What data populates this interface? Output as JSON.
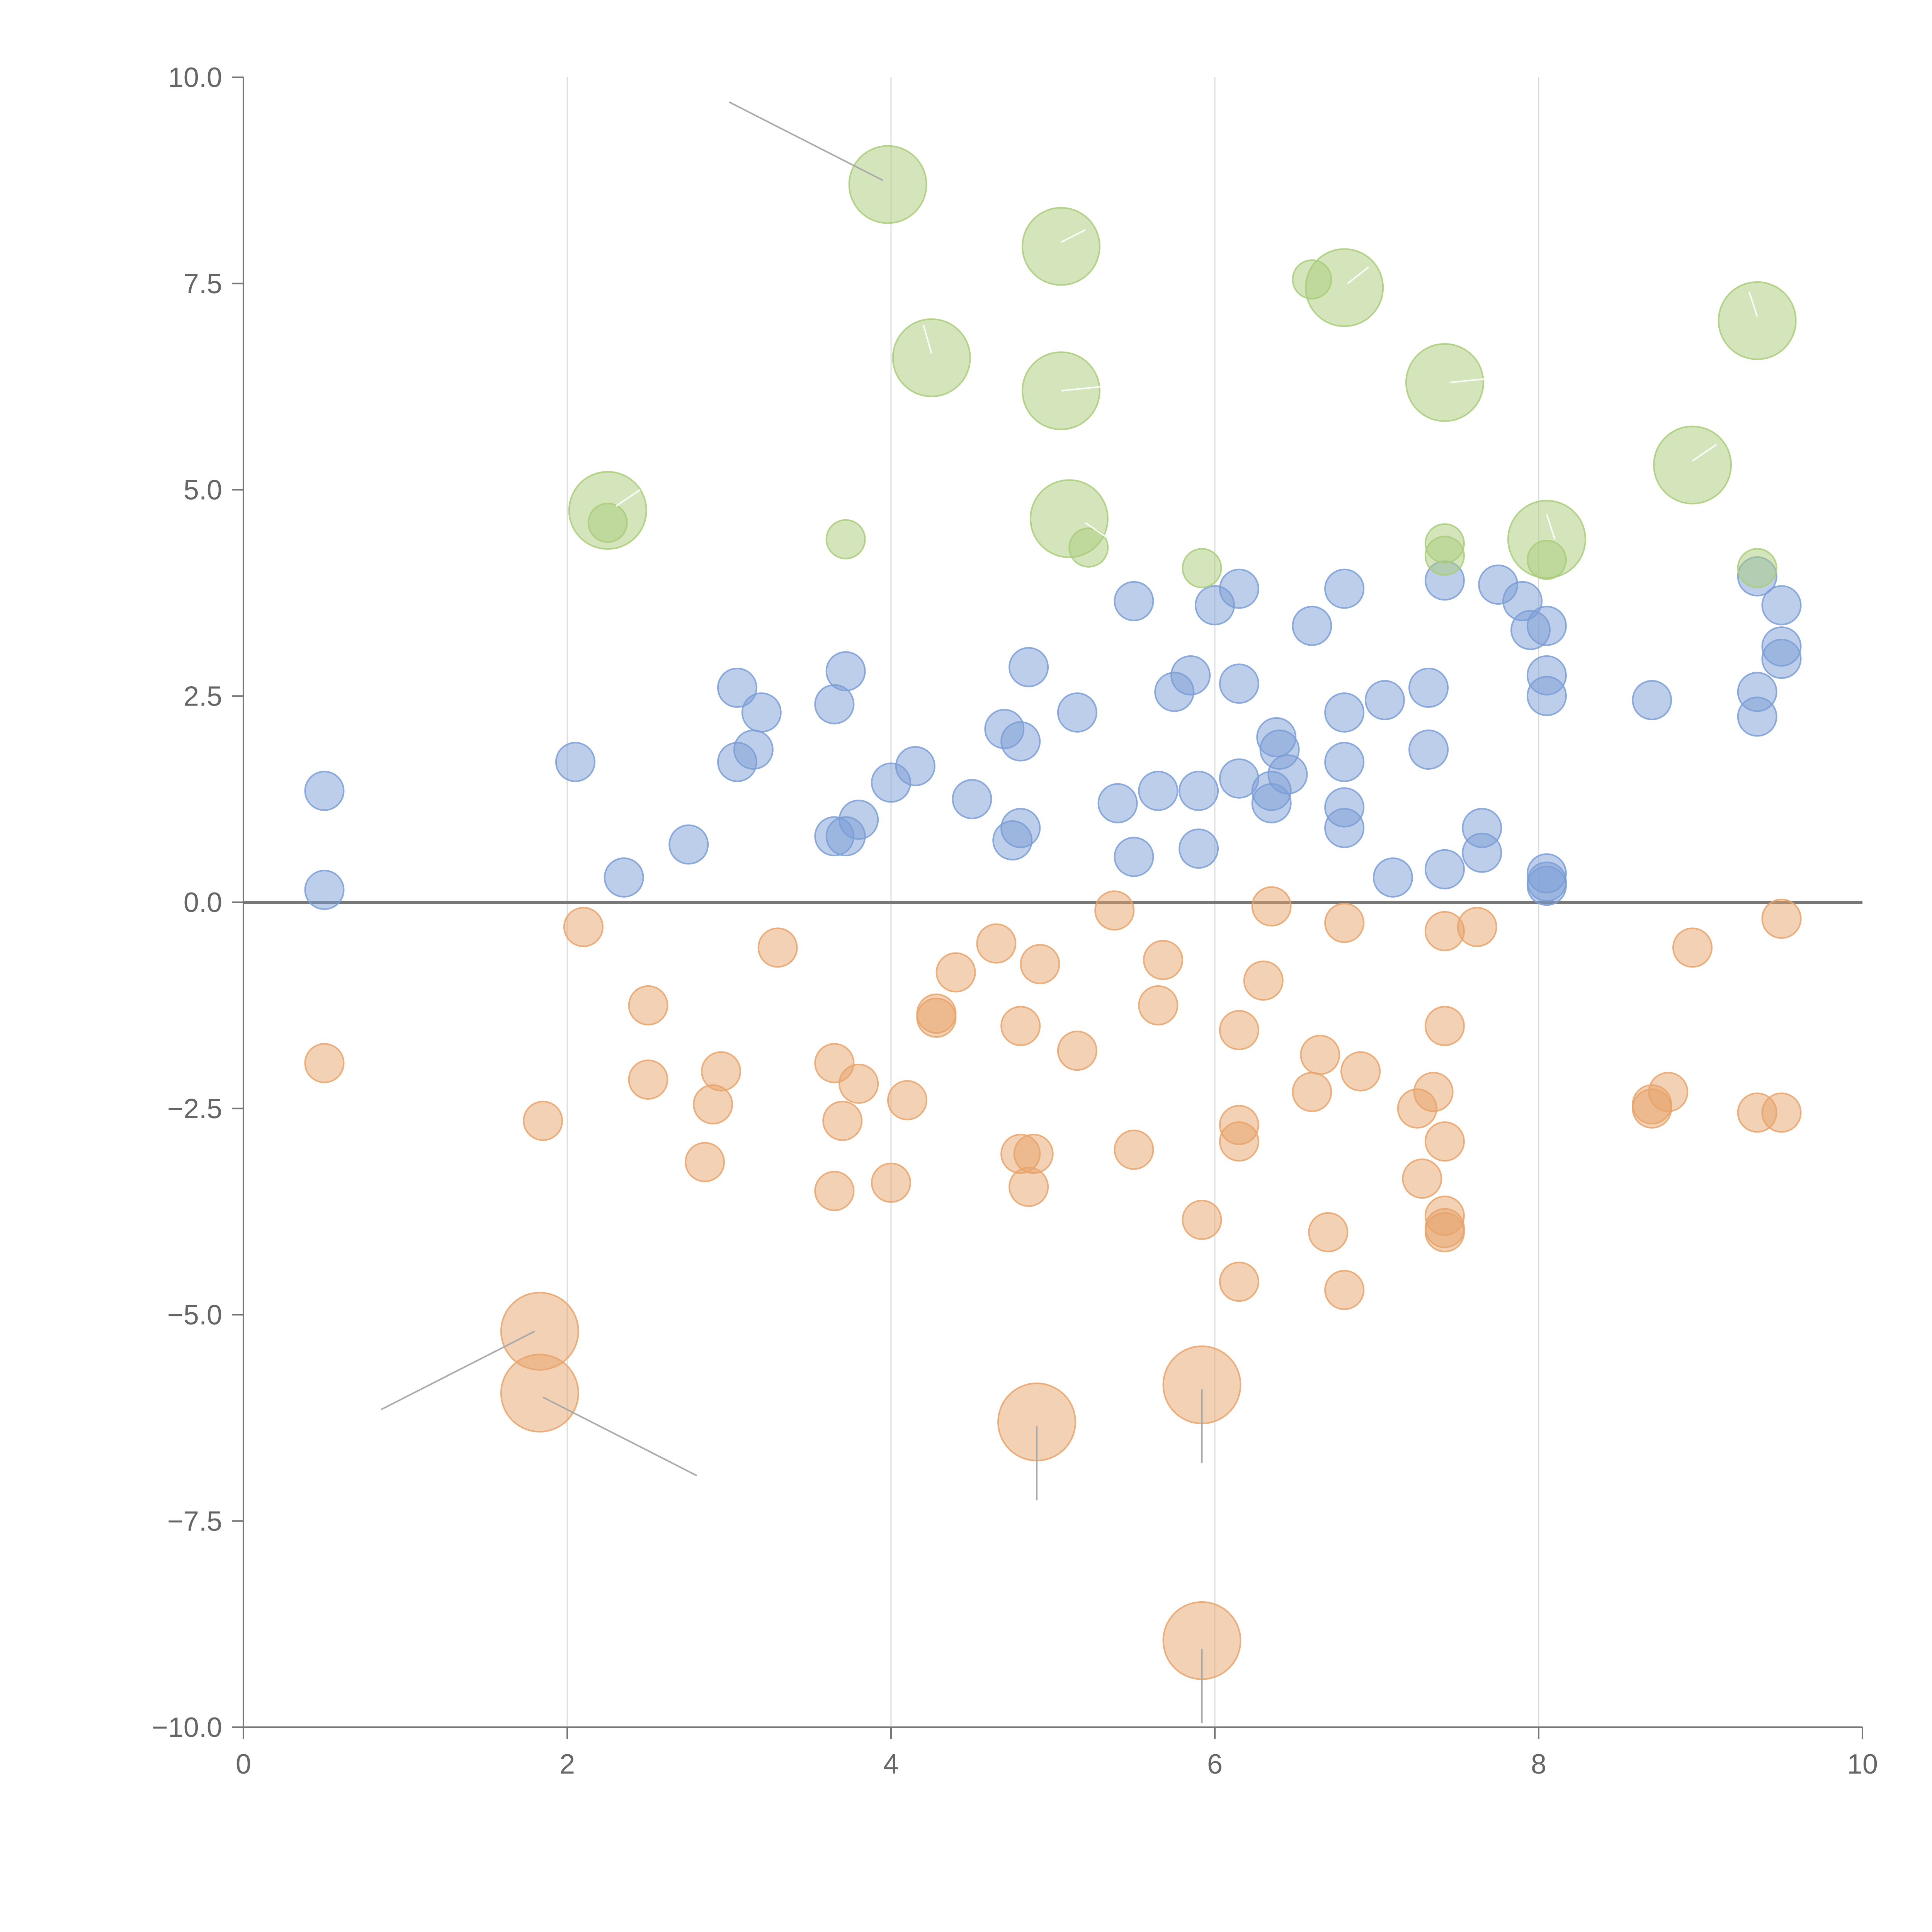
{
  "chart_data": {
    "type": "scatter",
    "title": "",
    "xlabel": "",
    "ylabel": "",
    "xlim": [
      0,
      10
    ],
    "ylim": [
      -10,
      10
    ],
    "x_ticks": [
      "0",
      "2",
      "4",
      "6",
      "8",
      "10"
    ],
    "y_ticks": [
      "10.0",
      "7.5",
      "5.0",
      "2.5",
      "0.0",
      "−2.5",
      "−5.0",
      "−7.5",
      "−10.0"
    ],
    "grid": "vertical-only",
    "zero_line": true,
    "colors": {
      "blue": "#7b9ed6",
      "orange": "#e8a36b",
      "green": "#a9cc7a"
    },
    "series": [
      {
        "color": "blue",
        "size": "small",
        "points": [
          [
            0.5,
            1.35
          ],
          [
            0.5,
            0.15
          ],
          [
            2.05,
            1.7
          ],
          [
            2.35,
            0.3
          ],
          [
            2.75,
            0.7
          ],
          [
            3.05,
            2.6
          ],
          [
            3.05,
            1.7
          ],
          [
            3.15,
            1.85
          ],
          [
            3.2,
            2.3
          ],
          [
            3.65,
            2.4
          ],
          [
            3.65,
            0.8
          ],
          [
            3.72,
            2.8
          ],
          [
            3.72,
            0.8
          ],
          [
            3.8,
            1.0
          ],
          [
            4.0,
            1.45
          ],
          [
            4.15,
            1.65
          ],
          [
            4.5,
            1.25
          ],
          [
            4.7,
            2.1
          ],
          [
            4.75,
            0.75
          ],
          [
            4.8,
            1.95
          ],
          [
            4.8,
            0.9
          ],
          [
            4.85,
            2.85
          ],
          [
            5.15,
            2.3
          ],
          [
            5.4,
            1.2
          ],
          [
            5.5,
            0.55
          ],
          [
            5.5,
            3.65
          ],
          [
            5.65,
            1.35
          ],
          [
            5.75,
            2.55
          ],
          [
            5.85,
            2.75
          ],
          [
            5.9,
            1.35
          ],
          [
            5.9,
            0.65
          ],
          [
            6.0,
            3.6
          ],
          [
            6.15,
            3.8
          ],
          [
            6.15,
            2.65
          ],
          [
            6.15,
            1.5
          ],
          [
            6.35,
            1.35
          ],
          [
            6.35,
            1.2
          ],
          [
            6.38,
            2.0
          ],
          [
            6.4,
            1.85
          ],
          [
            6.45,
            1.55
          ],
          [
            6.6,
            3.35
          ],
          [
            6.8,
            3.8
          ],
          [
            6.8,
            2.3
          ],
          [
            6.8,
            1.7
          ],
          [
            6.8,
            1.15
          ],
          [
            6.8,
            0.9
          ],
          [
            7.05,
            2.45
          ],
          [
            7.1,
            0.3
          ],
          [
            7.32,
            2.6
          ],
          [
            7.32,
            1.85
          ],
          [
            7.42,
            3.9
          ],
          [
            7.42,
            0.4
          ],
          [
            7.65,
            0.9
          ],
          [
            7.65,
            0.6
          ],
          [
            7.75,
            3.85
          ],
          [
            7.9,
            3.65
          ],
          [
            7.95,
            3.3
          ],
          [
            8.05,
            3.35
          ],
          [
            8.05,
            2.75
          ],
          [
            8.05,
            2.5
          ],
          [
            8.05,
            0.35
          ],
          [
            8.05,
            0.25
          ],
          [
            8.05,
            0.2
          ],
          [
            8.7,
            2.45
          ],
          [
            9.35,
            3.95
          ],
          [
            9.35,
            2.55
          ],
          [
            9.35,
            2.25
          ],
          [
            9.5,
            3.6
          ],
          [
            9.5,
            3.1
          ],
          [
            9.5,
            2.95
          ]
        ]
      },
      {
        "color": "orange",
        "size": "small",
        "points": [
          [
            0.5,
            -1.95
          ],
          [
            1.85,
            -2.65
          ],
          [
            2.1,
            -0.3
          ],
          [
            2.5,
            -1.25
          ],
          [
            2.5,
            -2.15
          ],
          [
            2.85,
            -3.15
          ],
          [
            2.9,
            -2.45
          ],
          [
            2.95,
            -2.05
          ],
          [
            3.3,
            -0.55
          ],
          [
            3.65,
            -1.95
          ],
          [
            3.65,
            -3.5
          ],
          [
            3.7,
            -2.65
          ],
          [
            3.8,
            -2.2
          ],
          [
            4.0,
            -3.4
          ],
          [
            4.1,
            -2.4
          ],
          [
            4.28,
            -1.4
          ],
          [
            4.28,
            -1.35
          ],
          [
            4.4,
            -0.85
          ],
          [
            4.65,
            -0.5
          ],
          [
            4.8,
            -1.5
          ],
          [
            4.8,
            -3.05
          ],
          [
            4.85,
            -3.45
          ],
          [
            4.88,
            -3.05
          ],
          [
            4.92,
            -0.75
          ],
          [
            5.15,
            -1.8
          ],
          [
            5.38,
            -0.1
          ],
          [
            5.5,
            -3.0
          ],
          [
            5.65,
            -1.25
          ],
          [
            5.68,
            -0.7
          ],
          [
            5.92,
            -3.85
          ],
          [
            6.15,
            -1.55
          ],
          [
            6.15,
            -2.7
          ],
          [
            6.15,
            -2.9
          ],
          [
            6.15,
            -4.6
          ],
          [
            6.3,
            -0.95
          ],
          [
            6.35,
            -0.05
          ],
          [
            6.6,
            -2.3
          ],
          [
            6.65,
            -1.85
          ],
          [
            6.7,
            -4.0
          ],
          [
            6.8,
            -0.25
          ],
          [
            6.8,
            -4.7
          ],
          [
            6.9,
            -2.05
          ],
          [
            7.25,
            -2.5
          ],
          [
            7.28,
            -3.35
          ],
          [
            7.35,
            -2.3
          ],
          [
            7.42,
            -0.35
          ],
          [
            7.42,
            -1.5
          ],
          [
            7.42,
            -2.9
          ],
          [
            7.42,
            -3.8
          ],
          [
            7.42,
            -3.95
          ],
          [
            7.42,
            -4.0
          ],
          [
            7.62,
            -0.3
          ],
          [
            8.7,
            -2.45
          ],
          [
            8.7,
            -2.5
          ],
          [
            8.8,
            -2.3
          ],
          [
            8.95,
            -0.55
          ],
          [
            9.35,
            -2.55
          ],
          [
            9.5,
            -0.2
          ],
          [
            9.5,
            -2.55
          ]
        ]
      },
      {
        "color": "green",
        "size": "small",
        "points": [
          [
            2.25,
            4.6
          ],
          [
            3.72,
            4.4
          ],
          [
            5.22,
            4.3
          ],
          [
            5.92,
            4.05
          ],
          [
            6.6,
            7.55
          ],
          [
            7.42,
            4.35
          ],
          [
            7.42,
            4.2
          ],
          [
            8.05,
            4.15
          ],
          [
            9.35,
            4.05
          ]
        ]
      },
      {
        "color": "green",
        "size": "large",
        "points": [
          [
            3.98,
            8.7
          ],
          [
            4.25,
            6.6
          ],
          [
            5.05,
            7.95
          ],
          [
            5.05,
            6.2
          ],
          [
            5.1,
            4.65
          ],
          [
            2.25,
            4.75
          ],
          [
            6.8,
            7.45
          ],
          [
            7.42,
            6.3
          ],
          [
            8.05,
            4.4
          ],
          [
            8.95,
            5.3
          ],
          [
            9.35,
            7.05
          ]
        ]
      },
      {
        "color": "orange",
        "size": "large",
        "points": [
          [
            1.83,
            -5.2
          ],
          [
            1.83,
            -5.95
          ],
          [
            4.9,
            -6.3
          ],
          [
            5.92,
            -5.85
          ],
          [
            5.92,
            -8.95
          ]
        ]
      }
    ]
  }
}
